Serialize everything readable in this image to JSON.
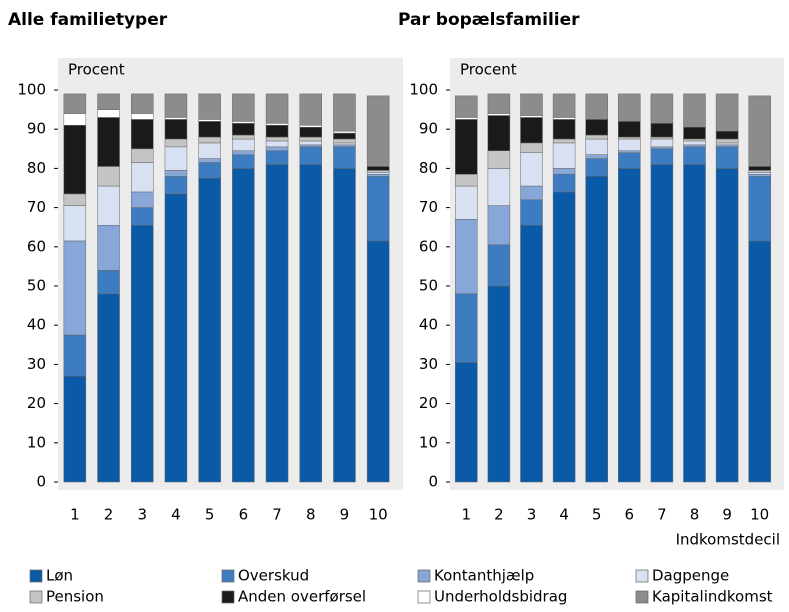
{
  "chart_data": [
    {
      "type": "stacked_bar",
      "title": "Alle familietyper",
      "ylabel": "Procent",
      "categories": [
        "1",
        "2",
        "3",
        "4",
        "5",
        "6",
        "7",
        "8",
        "9",
        "10"
      ],
      "ylim": [
        0,
        100
      ],
      "yticks": [
        0,
        10,
        20,
        30,
        40,
        50,
        60,
        70,
        80,
        90,
        100
      ],
      "series": [
        {
          "name": "Løn",
          "color": "#0a5aa8",
          "values": [
            27,
            48,
            65.5,
            73.5,
            77.5,
            80,
            81,
            81,
            80,
            61.5
          ]
        },
        {
          "name": "Overskud",
          "color": "#3d7cc0",
          "values": [
            10.5,
            6,
            4.5,
            4.5,
            4,
            3.5,
            3.5,
            4.5,
            5.5,
            16.5
          ]
        },
        {
          "name": "Kontanthjælp",
          "color": "#86a7d8",
          "values": [
            24,
            11.5,
            4,
            1.5,
            1,
            1,
            1,
            0.5,
            0.5,
            0.5
          ]
        },
        {
          "name": "Dagpenge",
          "color": "#d7e1f2",
          "values": [
            9,
            10,
            7.5,
            6,
            4,
            3,
            1.5,
            1,
            0.5,
            0.5
          ]
        },
        {
          "name": "Pension",
          "color": "#c4c4c4",
          "values": [
            3,
            5,
            3.5,
            2,
            1.5,
            1,
            1,
            1,
            1,
            0.5
          ]
        },
        {
          "name": "Anden overførsel",
          "color": "#1a1a1a",
          "values": [
            17.5,
            12.5,
            7.5,
            5,
            4,
            3,
            3,
            2.5,
            1.5,
            1
          ]
        },
        {
          "name": "Underholdsbidrag",
          "color": "#ffffff",
          "values": [
            3,
            2,
            1.5,
            0.5,
            0.5,
            0.5,
            0.5,
            0.5,
            0.5,
            0
          ]
        },
        {
          "name": "Kapitalindkomst",
          "color": "#8c8c8c",
          "values": [
            5,
            4,
            5,
            6,
            6.5,
            7,
            7.5,
            8,
            9.5,
            18
          ]
        }
      ]
    },
    {
      "type": "stacked_bar",
      "title": "Par bopælsfamilier",
      "ylabel": "Procent",
      "xlabel": "Indkomstdecil",
      "categories": [
        "1",
        "2",
        "3",
        "4",
        "5",
        "6",
        "7",
        "8",
        "9",
        "10"
      ],
      "ylim": [
        0,
        100
      ],
      "yticks": [
        0,
        10,
        20,
        30,
        40,
        50,
        60,
        70,
        80,
        90,
        100
      ],
      "series": [
        {
          "values": [
            30.5,
            50,
            65.5,
            74,
            78,
            80,
            81,
            81,
            80,
            61.5
          ]
        },
        {
          "values": [
            17.5,
            10.5,
            6.5,
            4.5,
            4.5,
            4,
            4,
            4.5,
            5.5,
            16.5
          ]
        },
        {
          "values": [
            19,
            10,
            3.5,
            1.5,
            1,
            0.5,
            0.5,
            0.5,
            0.5,
            0.5
          ]
        },
        {
          "values": [
            8.5,
            9.5,
            8.5,
            6.5,
            4,
            3,
            2,
            1,
            0.5,
            0.5
          ]
        },
        {
          "values": [
            3,
            4.5,
            2.5,
            1,
            1,
            0.5,
            0.5,
            0.5,
            1,
            0.5
          ]
        },
        {
          "values": [
            14,
            9,
            6.5,
            5,
            4,
            4,
            3.5,
            3,
            2,
            1
          ]
        },
        {
          "values": [
            0.5,
            0.5,
            0.5,
            0.5,
            0,
            0,
            0,
            0,
            0,
            0
          ]
        },
        {
          "values": [
            5.5,
            5,
            5.5,
            6,
            6.5,
            7,
            7.5,
            8.5,
            9.5,
            18
          ]
        }
      ]
    }
  ]
}
